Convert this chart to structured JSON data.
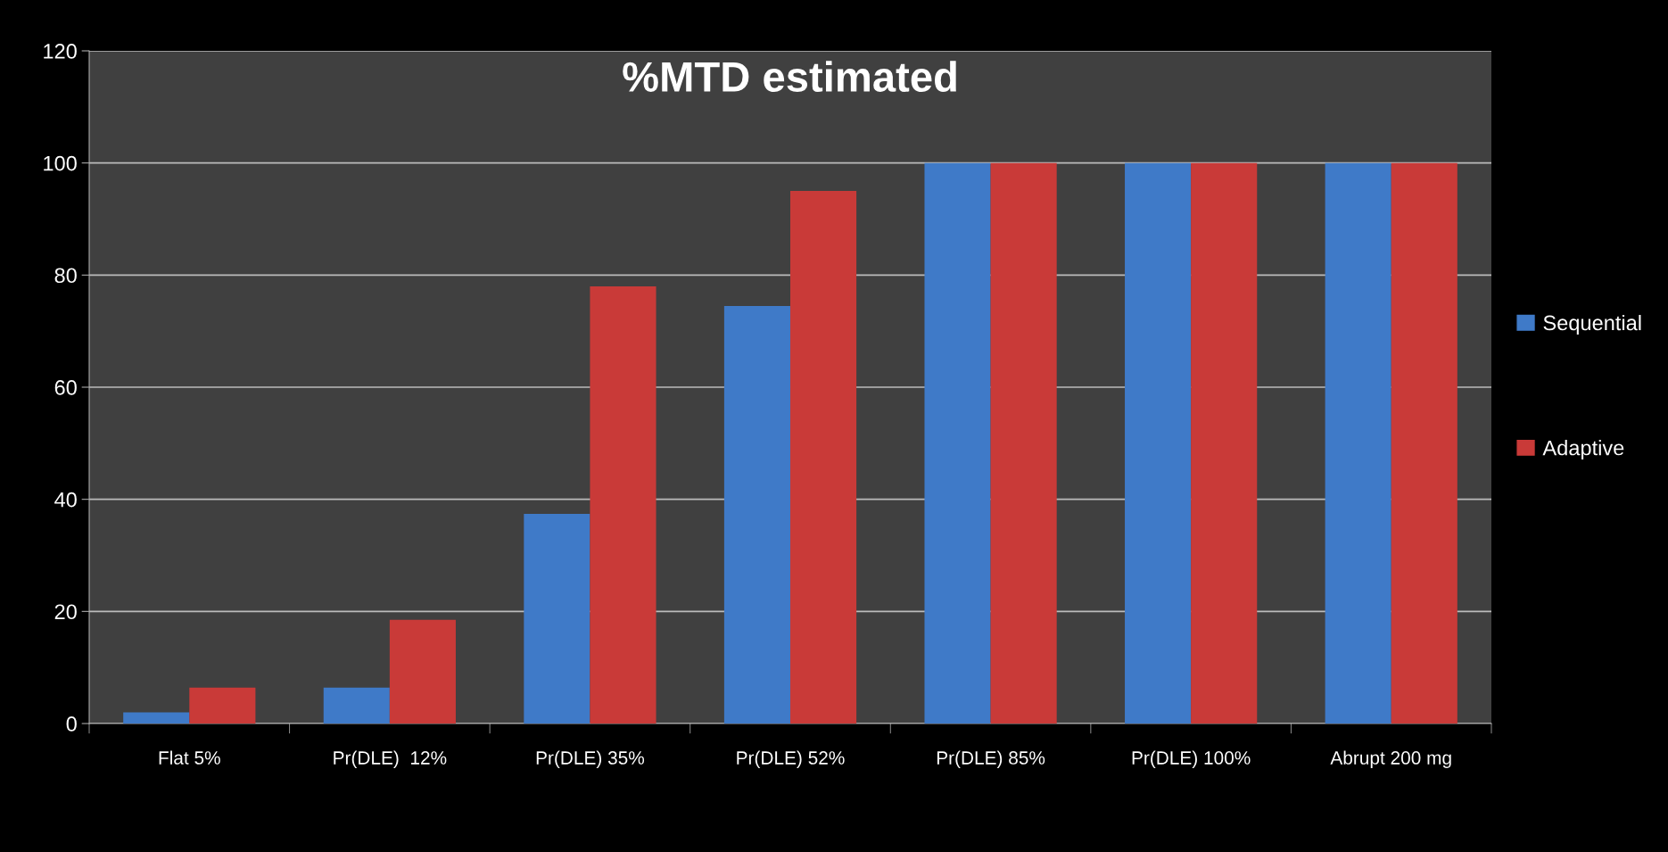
{
  "chart_data": {
    "type": "bar",
    "title": "%MTD estimated",
    "categories": [
      "Flat 5%",
      "Pr(DLE)  12%",
      "Pr(DLE) 35%",
      "Pr(DLE) 52%",
      "Pr(DLE) 85%",
      "Pr(DLE) 100%",
      "Abrupt 200 mg"
    ],
    "series": [
      {
        "name": "Sequential",
        "color": "#3f7ac8",
        "values": [
          2,
          6.4,
          37.4,
          74.5,
          100,
          100,
          100
        ]
      },
      {
        "name": "Adaptive",
        "color": "#c93a38",
        "values": [
          6.4,
          18.5,
          78,
          95,
          100,
          100,
          100
        ]
      }
    ],
    "ylim": [
      0,
      120
    ],
    "yticks": [
      0,
      20,
      40,
      60,
      80,
      100,
      120
    ],
    "grid": "y",
    "legend": "right"
  }
}
